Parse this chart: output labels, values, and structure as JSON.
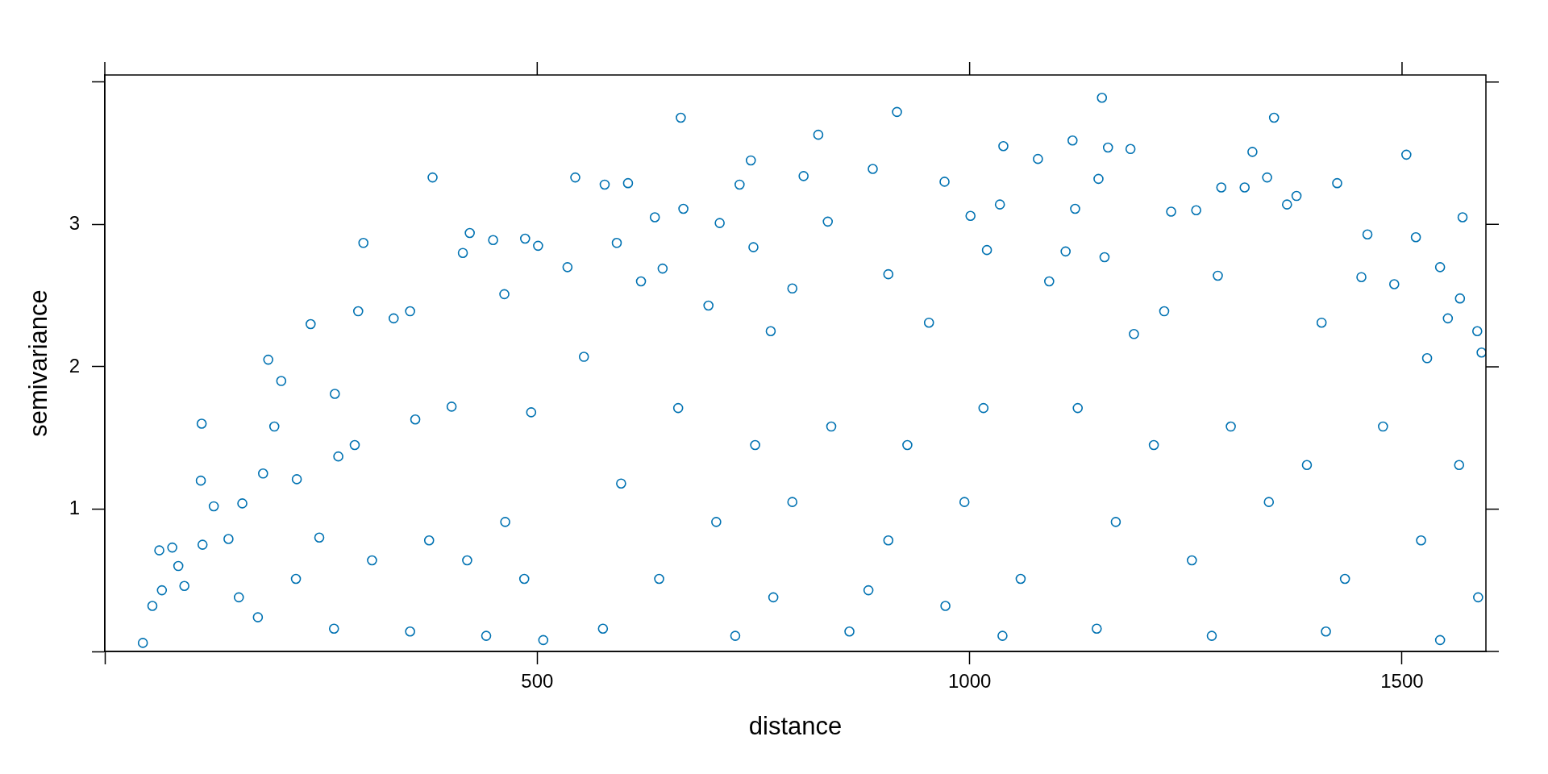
{
  "chart_data": {
    "type": "scatter",
    "xlabel": "distance",
    "ylabel": "semivariance",
    "color": "#0072b2",
    "marker": "circle",
    "xlim": [
      0,
      1597
    ],
    "ylim": [
      0,
      4.05
    ],
    "xticks": [
      {
        "value": 0,
        "label": null
      },
      500,
      1000,
      1500
    ],
    "yticks": [
      {
        "value": 0,
        "label": null
      },
      1,
      2,
      3,
      {
        "value": 4,
        "label": null
      }
    ],
    "x": [
      44,
      55,
      63,
      66,
      78,
      85,
      92,
      111,
      112,
      113,
      126,
      143,
      155,
      159,
      177,
      183,
      189,
      196,
      204,
      221,
      222,
      238,
      248,
      265,
      266,
      270,
      289,
      293,
      299,
      309,
      334,
      353,
      353,
      359,
      375,
      379,
      401,
      414,
      419,
      422,
      441,
      449,
      462,
      463,
      485,
      486,
      493,
      501,
      507,
      535,
      544,
      554,
      576,
      578,
      592,
      597,
      605,
      620,
      636,
      641,
      645,
      663,
      666,
      669,
      698,
      707,
      711,
      729,
      734,
      747,
      750,
      752,
      770,
      773,
      795,
      795,
      808,
      825,
      836,
      840,
      861,
      883,
      888,
      906,
      906,
      916,
      928,
      953,
      971,
      972,
      994,
      1001,
      1016,
      1020,
      1035,
      1038,
      1039,
      1059,
      1079,
      1092,
      1111,
      1119,
      1122,
      1149,
      1153,
      1156,
      1160,
      1186,
      1190,
      1225,
      1233,
      1262,
      1287,
      1291,
      1318,
      1327,
      1344,
      1352,
      1367,
      1378,
      1407,
      1425,
      1453,
      1460,
      1491,
      1505,
      1516,
      1529,
      1544,
      1553,
      1567,
      1570,
      1587,
      1592,
      1125,
      1213,
      1302,
      1390,
      1478,
      1566,
      1169,
      1257,
      1346,
      1434,
      1522,
      1588,
      1147,
      1280,
      1412,
      1544
    ],
    "values": [
      0.06,
      0.32,
      0.71,
      0.43,
      0.73,
      0.6,
      0.46,
      1.2,
      1.6,
      0.75,
      1.02,
      0.79,
      0.38,
      1.04,
      0.24,
      1.25,
      2.05,
      1.58,
      1.9,
      0.51,
      1.21,
      2.3,
      0.8,
      0.16,
      1.81,
      1.37,
      1.45,
      2.39,
      2.87,
      0.64,
      2.34,
      2.39,
      0.14,
      1.63,
      0.78,
      3.33,
      1.72,
      2.8,
      0.64,
      2.94,
      0.11,
      2.89,
      2.51,
      0.91,
      0.51,
      2.9,
      1.68,
      2.85,
      0.08,
      2.7,
      3.33,
      2.07,
      0.16,
      3.28,
      2.87,
      1.18,
      3.29,
      2.6,
      3.05,
      0.51,
      2.69,
      1.71,
      3.75,
      3.11,
      2.43,
      0.91,
      3.01,
      0.11,
      3.28,
      3.45,
      2.84,
      1.45,
      2.25,
      0.38,
      1.05,
      2.55,
      3.34,
      3.63,
      3.02,
      1.58,
      0.14,
      0.43,
      3.39,
      0.78,
      2.65,
      3.79,
      1.45,
      2.31,
      3.3,
      0.32,
      1.05,
      3.06,
      1.71,
      2.82,
      3.14,
      0.11,
      3.55,
      0.51,
      3.46,
      2.6,
      2.81,
      3.59,
      3.11,
      3.32,
      3.89,
      2.77,
      3.54,
      3.53,
      2.23,
      2.39,
      3.09,
      3.1,
      2.64,
      3.26,
      3.26,
      3.51,
      3.33,
      3.75,
      3.14,
      3.2,
      2.31,
      3.29,
      2.63,
      2.93,
      2.58,
      3.49,
      2.91,
      2.06,
      2.7,
      2.34,
      2.48,
      3.05,
      2.25,
      2.1,
      1.71,
      1.45,
      1.58,
      1.31,
      1.58,
      1.31,
      0.91,
      0.64,
      1.05,
      0.51,
      0.78,
      0.38,
      0.16,
      0.11,
      0.14,
      0.08
    ]
  }
}
